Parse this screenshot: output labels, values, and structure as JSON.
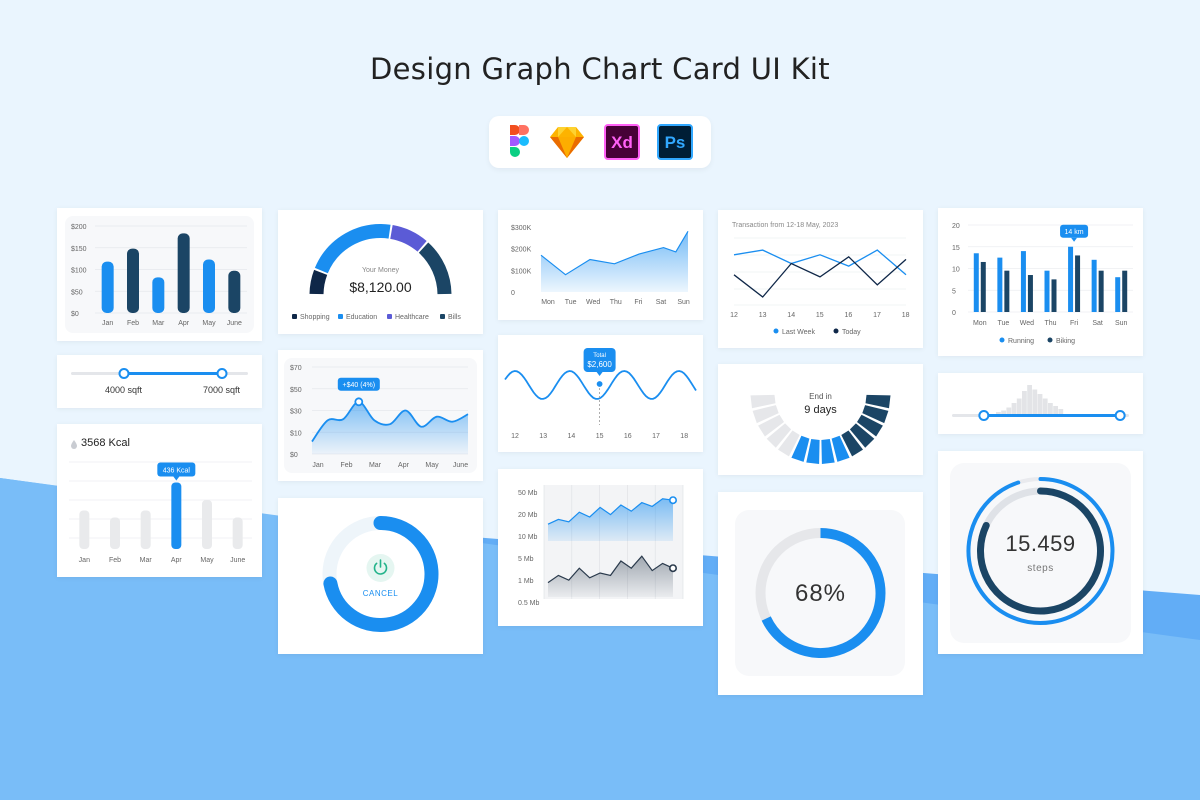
{
  "page": {
    "title": "Design Graph Chart Card UI Kit"
  },
  "tools": [
    {
      "name": "figma-logo",
      "label": ""
    },
    {
      "name": "sketch-logo",
      "label": ""
    },
    {
      "name": "xd-logo",
      "label": "Xd"
    },
    {
      "name": "photoshop-logo",
      "label": "Ps"
    }
  ],
  "colors": {
    "blue": "#1a8ef0",
    "navy": "#1b4565",
    "dark_navy": "#0f2748",
    "purple": "#5b5bd6",
    "light_gray": "#e8e9ee"
  },
  "chart_data": [
    {
      "id": "monthly-bars",
      "type": "bar",
      "categories": [
        "Jan",
        "Feb",
        "Mar",
        "Apr",
        "May",
        "June"
      ],
      "values": [
        118,
        148,
        82,
        183,
        123,
        97
      ],
      "yticks": [
        "$200",
        "$150",
        "$100",
        "$50",
        "$0"
      ],
      "ylim": [
        0,
        200
      ]
    },
    {
      "id": "range-slider-sqft",
      "type": "slider",
      "range": [
        4000,
        7000
      ],
      "labels": [
        "4000 sqft",
        "7000 sqft"
      ]
    },
    {
      "id": "calorie-bars",
      "type": "bar",
      "heading": "3568 Kcal",
      "categories": [
        "Jan",
        "Feb",
        "Mar",
        "Apr",
        "May",
        "June"
      ],
      "values": [
        0.55,
        0.45,
        0.55,
        0.95,
        0.7,
        0.45
      ],
      "highlight_index": 3,
      "highlight_label": "436 Kcal"
    },
    {
      "id": "money-donut",
      "type": "pie",
      "center_label": "Your Money",
      "center_value": "$8,120.00",
      "slices": [
        {
          "name": "Shopping",
          "value": 12,
          "color": "#0f2748"
        },
        {
          "name": "Education",
          "value": 43,
          "color": "#1a8ef0"
        },
        {
          "name": "Healthcare",
          "value": 18,
          "color": "#5b5bd6"
        },
        {
          "name": "Bills",
          "value": 27,
          "color": "#1b4565"
        }
      ]
    },
    {
      "id": "monthly-area",
      "type": "area",
      "categories": [
        "Jan",
        "Feb",
        "Mar",
        "Apr",
        "May",
        "June"
      ],
      "yticks": [
        "$70",
        "$50",
        "$30",
        "$10",
        "$0"
      ],
      "ylim": [
        0,
        70
      ],
      "x": [
        0,
        0.5,
        1,
        1.5,
        2,
        2.5,
        3,
        3.5,
        4,
        4.5,
        5
      ],
      "values": [
        10,
        27,
        28,
        42,
        27,
        24,
        35,
        22,
        30,
        26,
        32
      ],
      "tooltip": "+$40 (4%)",
      "tooltip_index": 3
    },
    {
      "id": "power-ring",
      "type": "gauge",
      "progress": 0.72,
      "button_label": "CANCEL"
    },
    {
      "id": "weekly-area",
      "type": "area",
      "categories": [
        "Mon",
        "Tue",
        "Wed",
        "Thu",
        "Fri",
        "Sat",
        "Sun"
      ],
      "yticks": [
        "$300K",
        "$200K",
        "$100K",
        "0"
      ],
      "ylim": [
        0,
        300
      ],
      "x": [
        0,
        1,
        2,
        3,
        4,
        5,
        5.5,
        6
      ],
      "values": [
        170,
        80,
        150,
        130,
        175,
        205,
        185,
        280
      ]
    },
    {
      "id": "wave-line",
      "type": "line",
      "categories": [
        "12",
        "13",
        "14",
        "15",
        "16",
        "17",
        "18"
      ],
      "tooltip_label": "Total",
      "tooltip_value": "$2,600",
      "tooltip_index": 3
    },
    {
      "id": "data-usage",
      "type": "area",
      "yticks_top": [
        "50 Mb",
        "20 Mb",
        "10 Mb"
      ],
      "yticks_bottom": [
        "5 Mb",
        "1 Mb",
        "0.5 Mb"
      ],
      "series": [
        {
          "values": [
            0.35,
            0.45,
            0.4,
            0.6,
            0.5,
            0.7,
            0.55,
            0.75,
            0.62,
            0.8,
            0.72,
            0.88,
            0.85
          ]
        },
        {
          "values": [
            0.3,
            0.45,
            0.35,
            0.6,
            0.4,
            0.5,
            0.45,
            0.75,
            0.6,
            0.85,
            0.55,
            0.7,
            0.6
          ]
        }
      ]
    },
    {
      "id": "transaction-lines",
      "type": "line",
      "title": "Transaction from 12-18 May, 2023",
      "categories": [
        "12",
        "13",
        "14",
        "15",
        "16",
        "17",
        "18"
      ],
      "series": [
        {
          "name": "Last Week",
          "color": "#1a8ef0",
          "values": [
            0.75,
            0.82,
            0.62,
            0.75,
            0.58,
            0.82,
            0.45
          ]
        },
        {
          "name": "Today",
          "color": "#0f2748",
          "values": [
            0.45,
            0.12,
            0.62,
            0.42,
            0.72,
            0.3,
            0.68
          ]
        }
      ]
    },
    {
      "id": "segmented-gauge",
      "type": "gauge",
      "label": "End in",
      "value": "9 days",
      "segments": 14,
      "filled": 9
    },
    {
      "id": "percent-ring",
      "type": "gauge",
      "progress": 0.68,
      "label": "68%"
    },
    {
      "id": "activity-bars",
      "type": "bar",
      "categories": [
        "Mon",
        "Tue",
        "Wed",
        "Thu",
        "Fri",
        "Sat",
        "Sun"
      ],
      "yticks": [
        "20",
        "15",
        "10",
        "5",
        "0"
      ],
      "ylim": [
        0,
        20
      ],
      "series": [
        {
          "name": "Running",
          "color": "#1a8ef0",
          "values": [
            13.5,
            12.5,
            14,
            9.5,
            15,
            12,
            8
          ]
        },
        {
          "name": "Biking",
          "color": "#1b4565",
          "values": [
            11.5,
            9.5,
            8.5,
            7.5,
            13,
            9.5,
            9.5
          ]
        }
      ],
      "tooltip": "14 km",
      "tooltip_index": 4
    },
    {
      "id": "histogram-slider",
      "type": "bar",
      "values": [
        0.1,
        0.15,
        0.25,
        0.4,
        0.55,
        0.8,
        1.0,
        0.85,
        0.7,
        0.55,
        0.4,
        0.3,
        0.2
      ],
      "range": [
        0.18,
        0.95
      ]
    },
    {
      "id": "steps-ring",
      "type": "gauge",
      "outer_progress": 0.95,
      "inner_progress": 0.82,
      "value": "15.459",
      "unit": "steps"
    }
  ]
}
